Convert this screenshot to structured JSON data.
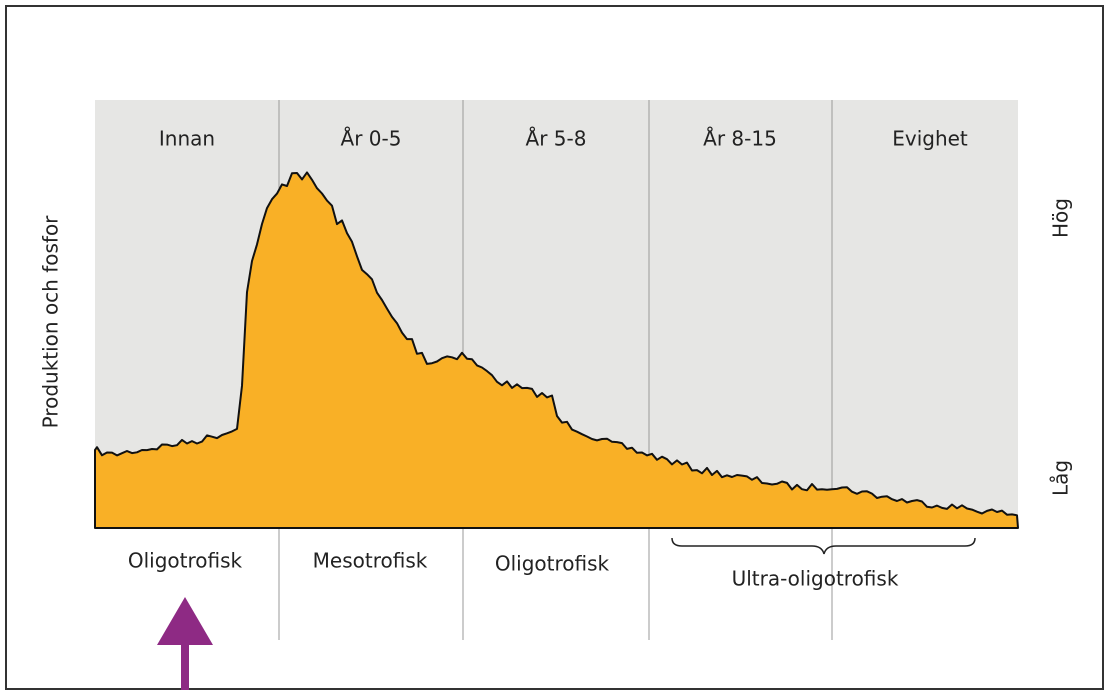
{
  "y_axis_label": "Produktion och fosfor",
  "high_label": "Hög",
  "low_label": "Låg",
  "periods": [
    "Innan",
    "År 0-5",
    "År 5-8",
    "År 8-15",
    "Evighet"
  ],
  "states": [
    "Oligotrofisk",
    "Mesotrofisk",
    "Oligotrofisk",
    "Ultra-oligotrofisk"
  ]
}
